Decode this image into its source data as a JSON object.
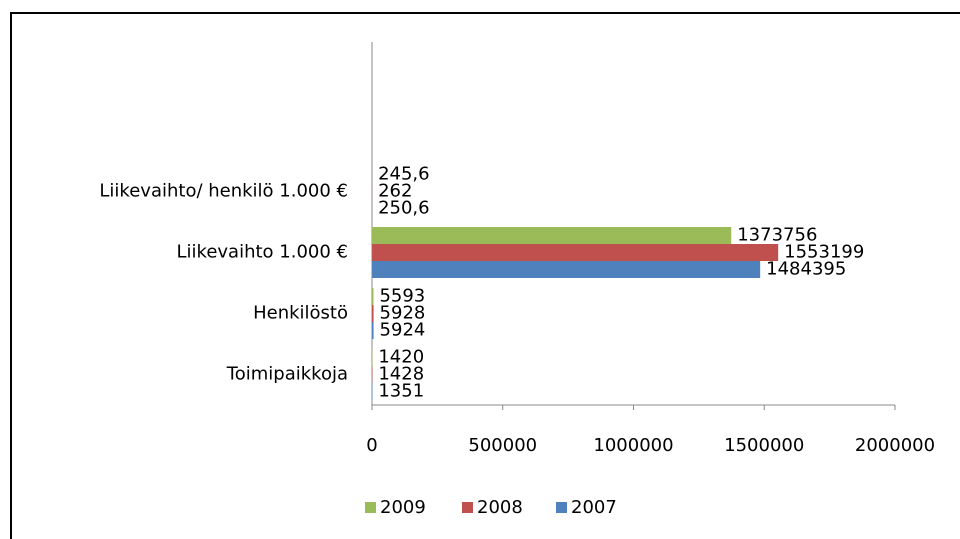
{
  "chart_data": {
    "type": "bar",
    "orientation": "horizontal",
    "categories": [
      "Toimipaikkoja",
      "Henkilöstö",
      "Liikevaihto  1.000 €",
      "Liikevaihto/ henkilö  1.000 €"
    ],
    "series": [
      {
        "name": "2009",
        "color": "#9bbb59",
        "values": [
          1420,
          5593,
          1373756,
          245.6
        ],
        "value_labels": [
          "1420",
          "5593",
          "1373756",
          "245,6"
        ]
      },
      {
        "name": "2008",
        "color": "#c0504d",
        "values": [
          1428,
          5928,
          1553199,
          262
        ],
        "value_labels": [
          "1428",
          "5928",
          "1553199",
          "262"
        ]
      },
      {
        "name": "2007",
        "color": "#4f81bd",
        "values": [
          1351,
          5924,
          1484395,
          250.6
        ],
        "value_labels": [
          "1351",
          "5924",
          "1484395",
          "250,6"
        ]
      }
    ],
    "xlim": [
      0,
      2000000
    ],
    "xticks": [
      0,
      500000,
      1000000,
      1500000,
      2000000
    ],
    "grid": false,
    "legend": "bottom"
  }
}
